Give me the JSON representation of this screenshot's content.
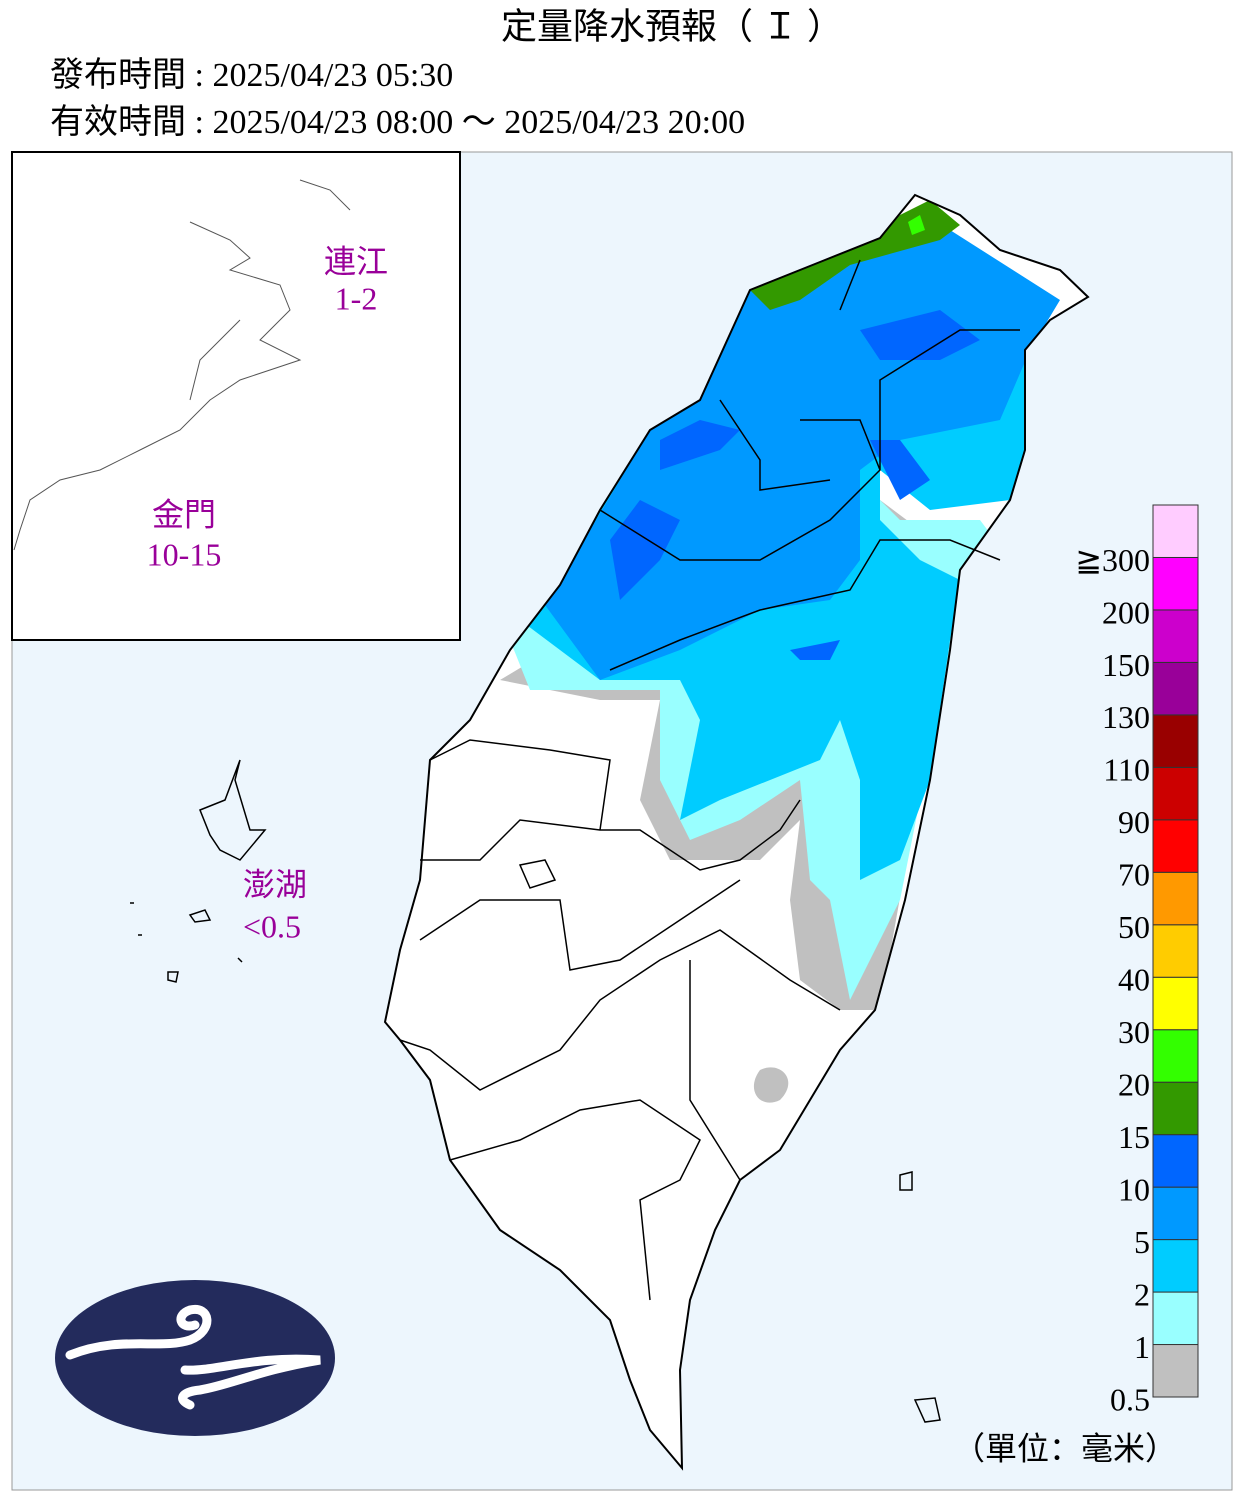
{
  "header": {
    "title": "定量降水預報（ Ｉ ）",
    "issued": "發布時間 : 2025/04/23 05:30",
    "valid": "有效時間 : 2025/04/23 08:00 ～ 2025/04/23 20:00"
  },
  "islands": [
    {
      "name": "連江",
      "amount": "1-2"
    },
    {
      "name": "金門",
      "amount": "10-15"
    },
    {
      "name": "澎湖",
      "amount": "<0.5"
    }
  ],
  "legend": {
    "labels": [
      "0.5",
      "1",
      "2",
      "5",
      "10",
      "15",
      "20",
      "30",
      "40",
      "50",
      "70",
      "90",
      "110",
      "130",
      "150",
      "200",
      "≧300"
    ],
    "colors": [
      "#c0c0c0",
      "#99ffff",
      "#00ccff",
      "#0099ff",
      "#0066ff",
      "#339900",
      "#33ff00",
      "#ffff00",
      "#ffcc00",
      "#ff9900",
      "#ff0000",
      "#cc0000",
      "#990000",
      "#990099",
      "#cc00cc",
      "#ff00ff",
      "#ffccff"
    ],
    "unit": "（單位：毫米）"
  }
}
